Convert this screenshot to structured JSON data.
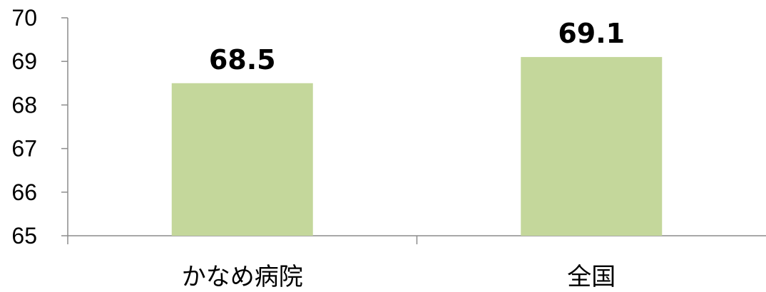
{
  "chart_data": {
    "type": "bar",
    "categories": [
      "かなめ病院",
      "全国"
    ],
    "values": [
      68.5,
      69.1
    ],
    "value_labels": [
      "68.5",
      "69.1"
    ],
    "ylim": [
      65,
      70
    ],
    "yticks": [
      "65",
      "66",
      "67",
      "68",
      "69",
      "70"
    ],
    "grid": false,
    "legend": "none",
    "bar_color": "#c4d79b"
  }
}
